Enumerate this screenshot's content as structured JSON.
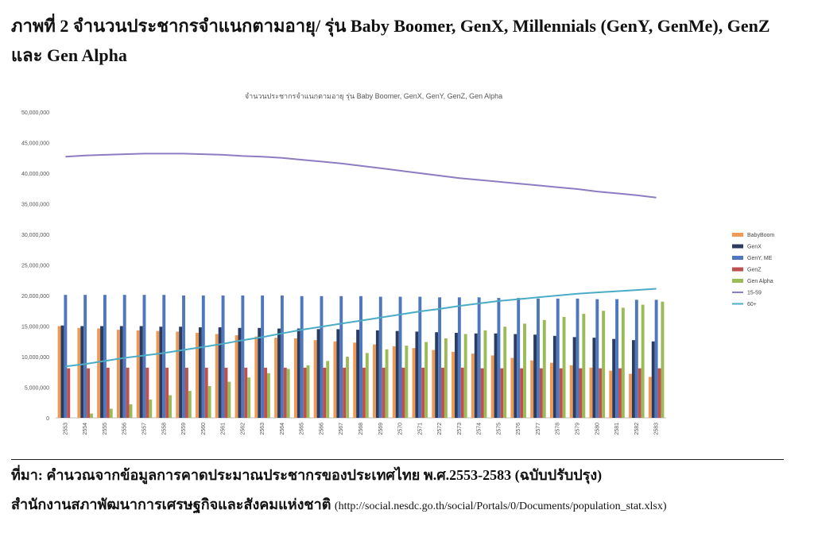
{
  "figure": {
    "heading": "ภาพที่ 2 จำนวนประชากรจำแนกตามอายุ/ รุ่น Baby Boomer, GenX, Millennials (GenY, GenMe), GenZ และ Gen Alpha",
    "source_line1": "ที่มา:  คำนวณจากข้อมูลการคาดประมาณประชากรของประเทศไทย พ.ศ.2553-2583 (ฉบับปรับปรุง)",
    "source_line2_text": "สำนักงานสภาพัฒนาการเศรษฐกิจและสังคมแห่งชาติ ",
    "source_line2_url": "(http://social.nesdc.go.th/social/Portals/0/Documents/population_stat.xlsx)"
  },
  "chart_data": {
    "type": "bar",
    "title": "จำนวนประชากรจำแนกตามอายุ รุ่น Baby Boomer, GenX, GenY, GenZ, Gen Alpha",
    "xlabel": "",
    "ylabel": "",
    "ylim": [
      0,
      50000000
    ],
    "yticks": [
      0,
      5000000,
      10000000,
      15000000,
      20000000,
      25000000,
      30000000,
      35000000,
      40000000,
      45000000,
      50000000
    ],
    "ytick_labels": [
      "0",
      "5,000,000",
      "10,000,000",
      "15,000,000",
      "20,000,000",
      "25,000,000",
      "30,000,000",
      "35,000,000",
      "40,000,000",
      "45,000,000",
      "50,000,000"
    ],
    "grid": false,
    "legend_position": "right",
    "categories": [
      "2553",
      "2554",
      "2555",
      "2556",
      "2557",
      "2558",
      "2559",
      "2560",
      "2561",
      "2562",
      "2563",
      "2564",
      "2565",
      "2566",
      "2567",
      "2568",
      "2569",
      "2570",
      "2571",
      "2572",
      "2573",
      "2574",
      "2575",
      "2576",
      "2577",
      "2578",
      "2579",
      "2580",
      "2581",
      "2582",
      "2583"
    ],
    "series": [
      {
        "name": "BabyBoom",
        "kind": "bar",
        "color": "#ee9a55",
        "values": [
          15000000,
          14700000,
          14600000,
          14400000,
          14300000,
          14200000,
          14100000,
          13900000,
          13700000,
          13500000,
          13300000,
          13100000,
          13000000,
          12700000,
          12500000,
          12300000,
          12000000,
          11700000,
          11400000,
          11100000,
          10800000,
          10500000,
          10200000,
          9800000,
          9400000,
          9000000,
          8600000,
          8200000,
          7700000,
          7200000,
          6700000
        ]
      },
      {
        "name": "GenX",
        "kind": "bar",
        "color": "#2a3c60",
        "values": [
          15100000,
          15000000,
          15000000,
          15000000,
          15000000,
          14900000,
          14900000,
          14800000,
          14800000,
          14700000,
          14700000,
          14600000,
          14600000,
          14500000,
          14500000,
          14400000,
          14300000,
          14200000,
          14100000,
          14000000,
          13900000,
          13800000,
          13800000,
          13700000,
          13600000,
          13400000,
          13200000,
          13100000,
          12900000,
          12700000,
          12500000
        ]
      },
      {
        "name": "GenY, ME",
        "kind": "bar",
        "color": "#4e77bd",
        "values": [
          20100000,
          20100000,
          20100000,
          20100000,
          20100000,
          20100000,
          20000000,
          20000000,
          20000000,
          20000000,
          20000000,
          20000000,
          19900000,
          19900000,
          19900000,
          19900000,
          19800000,
          19800000,
          19800000,
          19700000,
          19700000,
          19700000,
          19600000,
          19600000,
          19500000,
          19500000,
          19500000,
          19400000,
          19400000,
          19300000,
          19300000
        ]
      },
      {
        "name": "GenZ",
        "kind": "bar",
        "color": "#c0504d",
        "values": [
          8100000,
          8100000,
          8200000,
          8200000,
          8200000,
          8200000,
          8200000,
          8200000,
          8200000,
          8200000,
          8200000,
          8200000,
          8200000,
          8200000,
          8200000,
          8200000,
          8200000,
          8200000,
          8200000,
          8200000,
          8200000,
          8100000,
          8100000,
          8100000,
          8100000,
          8100000,
          8100000,
          8100000,
          8100000,
          8100000,
          8100000
        ]
      },
      {
        "name": "Gen Alpha",
        "kind": "bar",
        "color": "#9bbb59",
        "values": [
          0,
          700000,
          1500000,
          2200000,
          3000000,
          3700000,
          4400000,
          5200000,
          5900000,
          6600000,
          7300000,
          8000000,
          8600000,
          9300000,
          10000000,
          10600000,
          11200000,
          11800000,
          12400000,
          13000000,
          13700000,
          14300000,
          14900000,
          15400000,
          16000000,
          16500000,
          17000000,
          17500000,
          18000000,
          18500000,
          19000000
        ]
      },
      {
        "name": "15-59",
        "kind": "line",
        "color": "#8e7cc3",
        "values": [
          42700000,
          42900000,
          43000000,
          43100000,
          43200000,
          43200000,
          43200000,
          43100000,
          43000000,
          42800000,
          42700000,
          42500000,
          42200000,
          41900000,
          41600000,
          41200000,
          40800000,
          40400000,
          40000000,
          39600000,
          39200000,
          38900000,
          38600000,
          38300000,
          38000000,
          37700000,
          37400000,
          37000000,
          36700000,
          36400000,
          36000000
        ]
      },
      {
        "name": "60+",
        "kind": "line",
        "color": "#4bacc6",
        "values": [
          8400000,
          8800000,
          9300000,
          9800000,
          10200000,
          10600000,
          11100000,
          11600000,
          12100000,
          12700000,
          13200000,
          13800000,
          14400000,
          14900000,
          15400000,
          15900000,
          16400000,
          16900000,
          17400000,
          17800000,
          18300000,
          18700000,
          19100000,
          19400000,
          19700000,
          20000000,
          20300000,
          20500000,
          20700000,
          20900000,
          21100000
        ]
      }
    ]
  }
}
